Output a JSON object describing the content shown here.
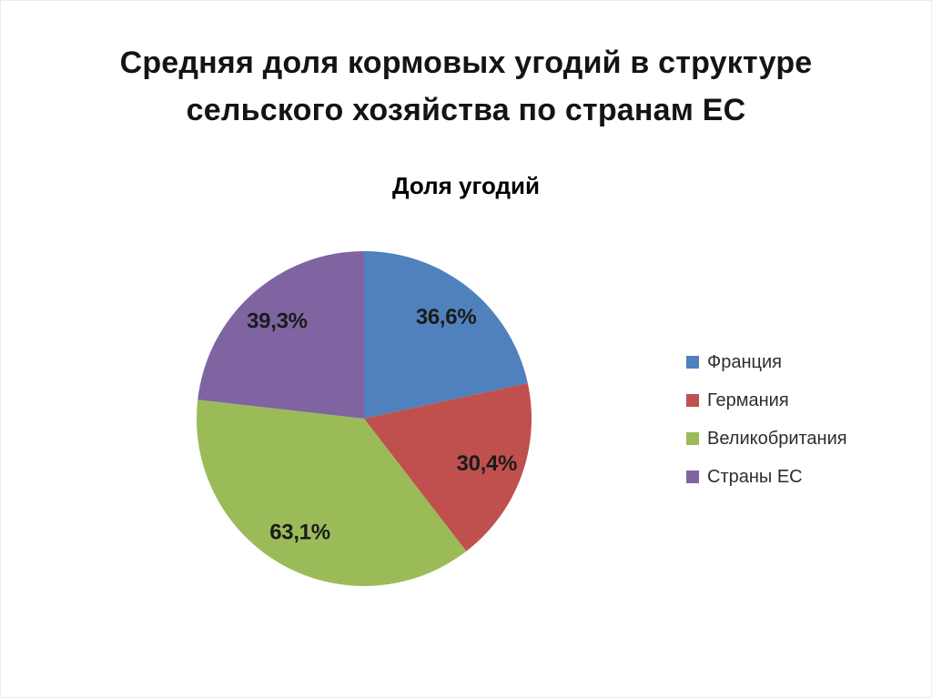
{
  "page": {
    "title": "Средняя доля кормовых угодий в структуре сельского хозяйства по странам ЕС",
    "title_lines": [
      "Средняя доля кормовых угодий в структуре",
      "сельского хозяйства по странам ЕС"
    ]
  },
  "chart_data": {
    "type": "pie",
    "title": "Доля угодий",
    "categories": [
      "Франция",
      "Германия",
      "Великобритания",
      "Страны ЕС"
    ],
    "values": [
      36.6,
      30.4,
      63.1,
      39.3
    ],
    "value_labels": [
      "36,6%",
      "30,4%",
      "63,1%",
      "39,3%"
    ],
    "colors": [
      "#4F81BD",
      "#C0504D",
      "#9BBB59",
      "#8064A2"
    ],
    "label_color": "#1b1b1b",
    "legend_position": "right",
    "start_angle_deg": 0,
    "direction": "clockwise",
    "label_radius_ratio": 0.78
  }
}
